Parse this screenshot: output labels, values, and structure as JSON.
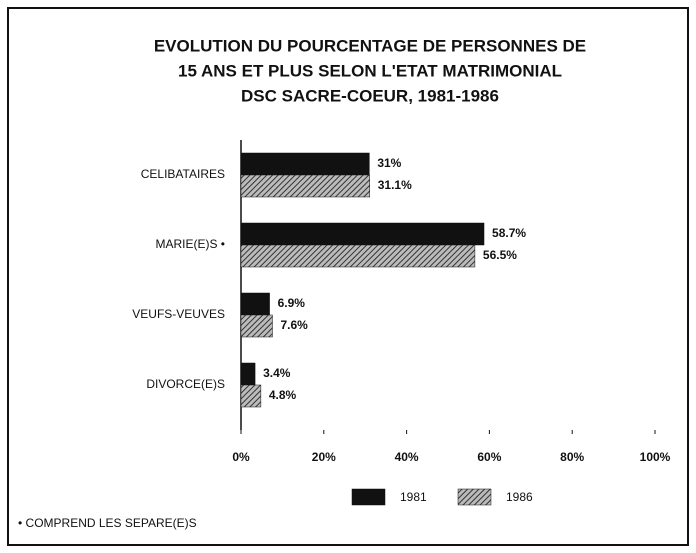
{
  "chart_data": {
    "type": "hbar",
    "title": [
      "EVOLUTION DU POURCENTAGE DE PERSONNES DE",
      "15 ANS ET PLUS SELON L'ETAT MATRIMONIAL",
      "DSC SACRE-COEUR, 1981-1986"
    ],
    "categories": [
      "CELIBATAIRES",
      "MARIE(E)S •",
      "VEUFS-VEUVES",
      "DIVORCE(E)S"
    ],
    "series": [
      {
        "name": "1981",
        "color": "#111111",
        "hatch": false,
        "values": [
          31,
          58.7,
          6.9,
          3.4
        ],
        "value_labels": [
          "31%",
          "58.7%",
          "6.9%",
          "3.4%"
        ]
      },
      {
        "name": "1986",
        "color": "#333333",
        "hatch": true,
        "values": [
          31.1,
          56.5,
          7.6,
          4.8
        ],
        "value_labels": [
          "31.1%",
          "56.5%",
          "7.6%",
          "4.8%"
        ]
      }
    ],
    "xlim": [
      0,
      100
    ],
    "xticks": [
      {
        "value": 0,
        "label": "0%"
      },
      {
        "value": 20,
        "label": "20%"
      },
      {
        "value": 40,
        "label": "40%"
      },
      {
        "value": 60,
        "label": "60%"
      },
      {
        "value": 80,
        "label": "80%"
      },
      {
        "value": 100,
        "label": "100%"
      }
    ],
    "footnote": "• COMPREND LES SEPARE(E)S"
  }
}
